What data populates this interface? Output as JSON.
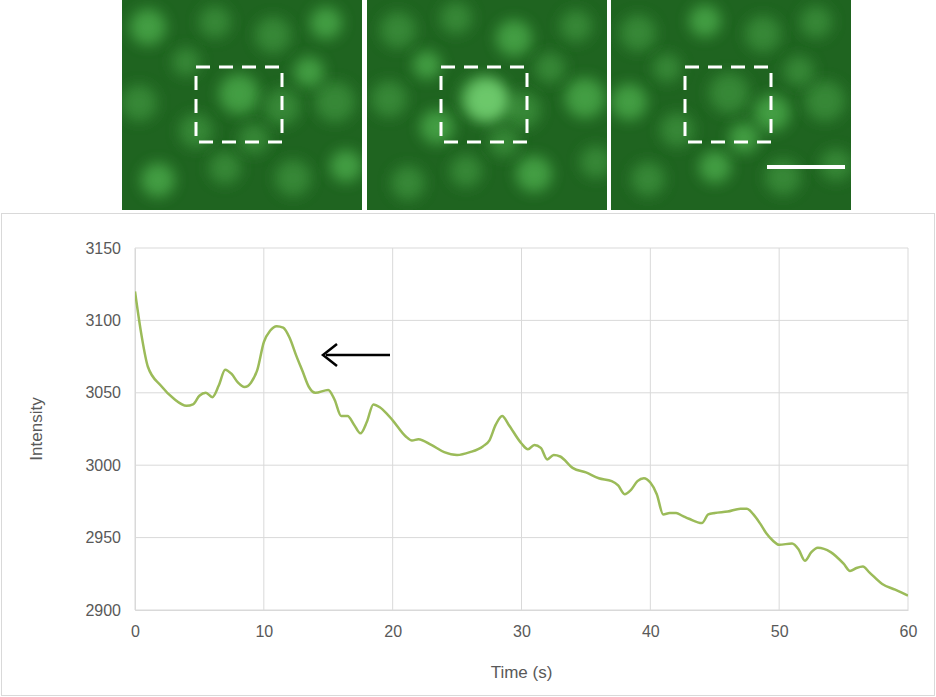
{
  "chart_data": {
    "type": "line",
    "x_label": "Time (s)",
    "y_label": "Intensity",
    "x": [
      0,
      0.5,
      1,
      2,
      3,
      4,
      4.5,
      5,
      5.5,
      6,
      6.5,
      7,
      7.5,
      8,
      8.5,
      9,
      9.5,
      10,
      10.5,
      11,
      11.5,
      12,
      12.5,
      13,
      13.5,
      14,
      15,
      15.5,
      16,
      16.5,
      17,
      17.5,
      18,
      18.5,
      19,
      19.5,
      20,
      21,
      21.5,
      22,
      23,
      24,
      25,
      26,
      27,
      27.5,
      28,
      28.5,
      29,
      30,
      30.5,
      31,
      31.5,
      32,
      32.5,
      33,
      34,
      35,
      36,
      37,
      37.5,
      38,
      38.5,
      39,
      39.5,
      40,
      40.5,
      41,
      41.5,
      42,
      42.5,
      43,
      44,
      44.5,
      45,
      46,
      47,
      47.5,
      48,
      48.5,
      49,
      49.5,
      50,
      51,
      51.5,
      52,
      52.5,
      53,
      54,
      55,
      55.5,
      56,
      56.5,
      57,
      58,
      59,
      60
    ],
    "values": [
      3120,
      3090,
      3068,
      3055,
      3046,
      3041,
      3042,
      3048,
      3050,
      3047,
      3055,
      3066,
      3063,
      3057,
      3054,
      3057,
      3066,
      3085,
      3093,
      3096,
      3095,
      3088,
      3076,
      3065,
      3054,
      3050,
      3052,
      3045,
      3034,
      3034,
      3028,
      3022,
      3030,
      3042,
      3040,
      3036,
      3031,
      3020,
      3017,
      3018,
      3014,
      3009,
      3007,
      3009,
      3013,
      3017,
      3028,
      3034,
      3028,
      3015,
      3011,
      3014,
      3012,
      3004,
      3007,
      3006,
      2998,
      2995,
      2991,
      2989,
      2986,
      2980,
      2983,
      2989,
      2991,
      2988,
      2980,
      2966,
      2967,
      2967,
      2965,
      2963,
      2960,
      2966,
      2967,
      2968,
      2970,
      2970,
      2966,
      2960,
      2953,
      2948,
      2945,
      2946,
      2942,
      2934,
      2940,
      2943,
      2940,
      2932,
      2927,
      2929,
      2930,
      2926,
      2918,
      2914,
      2910
    ],
    "color": "#9bbb59",
    "xlim": [
      0,
      60
    ],
    "ylim": [
      2900,
      3150
    ],
    "xticks": [
      0,
      10,
      20,
      30,
      40,
      50,
      60
    ],
    "yticks": [
      2900,
      2950,
      3000,
      3050,
      3100,
      3150
    ],
    "grid": true
  }
}
